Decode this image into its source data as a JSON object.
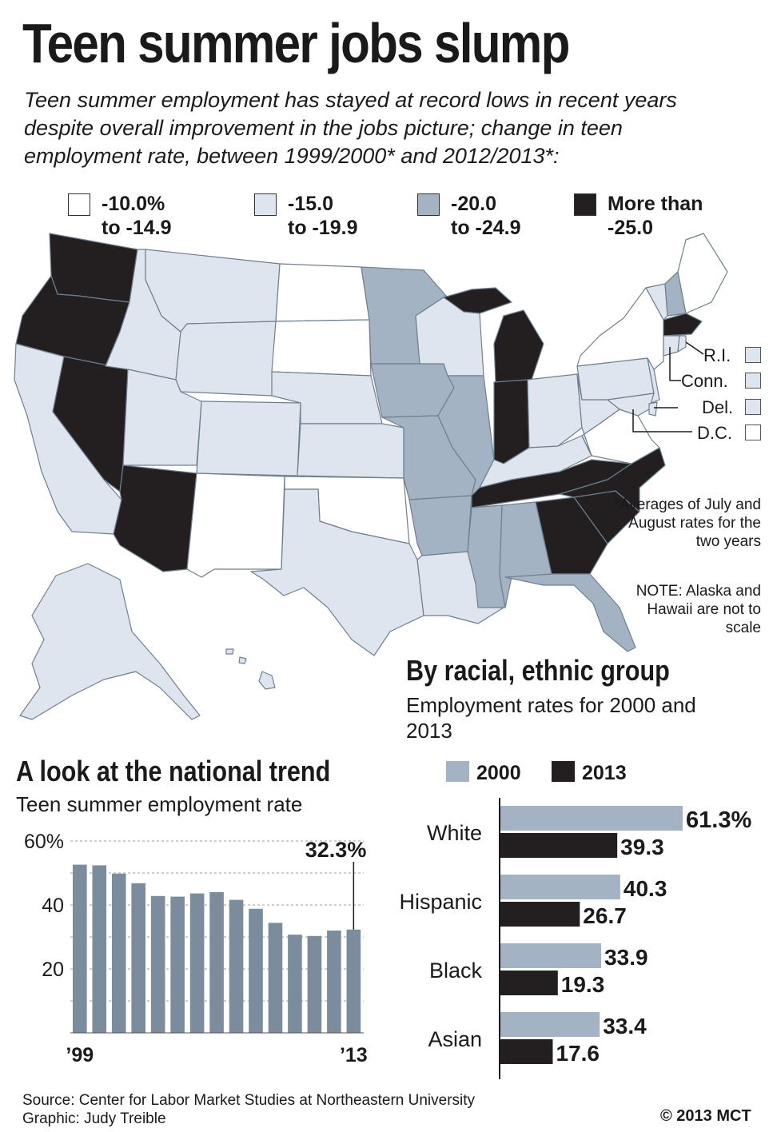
{
  "title": "Teen summer jobs slump",
  "subtitle": "Teen summer employment has stayed at record lows in recent years despite overall improvement in the jobs picture; change in teen employment rate, between 1999/2000* and 2012/2013*:",
  "legend": [
    {
      "line1": "-10.0%",
      "line2": "to -14.9",
      "color": "#ffffff"
    },
    {
      "line1": "-15.0",
      "line2": "to -19.9",
      "color": "#dfe5ee"
    },
    {
      "line1": "-20.0",
      "line2": "to -24.9",
      "color": "#a3b3c3"
    },
    {
      "line1": "More than",
      "line2": "-25.0",
      "color": "#231f20"
    }
  ],
  "state_labels": [
    {
      "name": "R.I.",
      "color": "#dfe5ee"
    },
    {
      "name": "Conn.",
      "color": "#dfe5ee"
    },
    {
      "name": "Del.",
      "color": "#dfe5ee"
    },
    {
      "name": "D.C.",
      "color": "#ffffff"
    }
  ],
  "footnote": "*Averages of July and August rates for the two years",
  "note": "NOTE: Alaska and Hawaii are not to scale",
  "trend": {
    "heading": "A look at the national trend",
    "sub": "Teen summer employment rate"
  },
  "racial": {
    "heading": "By racial, ethnic group",
    "sub": "Employment rates for 2000 and 2013"
  },
  "source": "Source: Center for Labor Market Studies at Northeastern University",
  "graphic": "Graphic: Judy Treible",
  "copyright": "© 2013 MCT",
  "colors": {
    "light": "#dfe5ee",
    "mid": "#a3b3c3",
    "dark": "#231f20",
    "trend_bar": "#7b8d9c"
  },
  "chart_data": [
    {
      "type": "bar",
      "title": "A look at the national trend",
      "subtitle": "Teen summer employment rate",
      "x": [
        1999,
        2000,
        2001,
        2002,
        2003,
        2004,
        2005,
        2006,
        2007,
        2008,
        2009,
        2010,
        2011,
        2012,
        2013
      ],
      "values": [
        52.6,
        52.4,
        49.8,
        46.8,
        42.8,
        42.6,
        43.6,
        44.0,
        41.6,
        38.8,
        34.4,
        30.7,
        30.3,
        32.0,
        32.3
      ],
      "ylim": [
        0,
        60
      ],
      "yticks": [
        {
          "v": 60,
          "label": "60%"
        },
        {
          "v": 40,
          "label": "40"
        },
        {
          "v": 20,
          "label": "20"
        }
      ],
      "xtick_labels": [
        {
          "x": 1999,
          "label": "’99"
        },
        {
          "x": 2013,
          "label": "’13"
        }
      ],
      "annotation": {
        "x": 2013,
        "label": "32.3%"
      },
      "grid": true
    },
    {
      "type": "bar",
      "orientation": "horizontal",
      "title": "By racial, ethnic group",
      "subtitle": "Employment rates for 2000 and 2013",
      "categories": [
        "White",
        "Hispanic",
        "Black",
        "Asian"
      ],
      "series": [
        {
          "name": "2000",
          "values": [
            61.3,
            40.3,
            33.9,
            33.4
          ],
          "labels": [
            "61.3%",
            "40.3",
            "33.9",
            "33.4"
          ]
        },
        {
          "name": "2013",
          "values": [
            39.3,
            26.7,
            19.3,
            17.6
          ],
          "labels": [
            "39.3",
            "26.7",
            "19.3",
            "17.6"
          ]
        }
      ],
      "legend": "top"
    }
  ]
}
